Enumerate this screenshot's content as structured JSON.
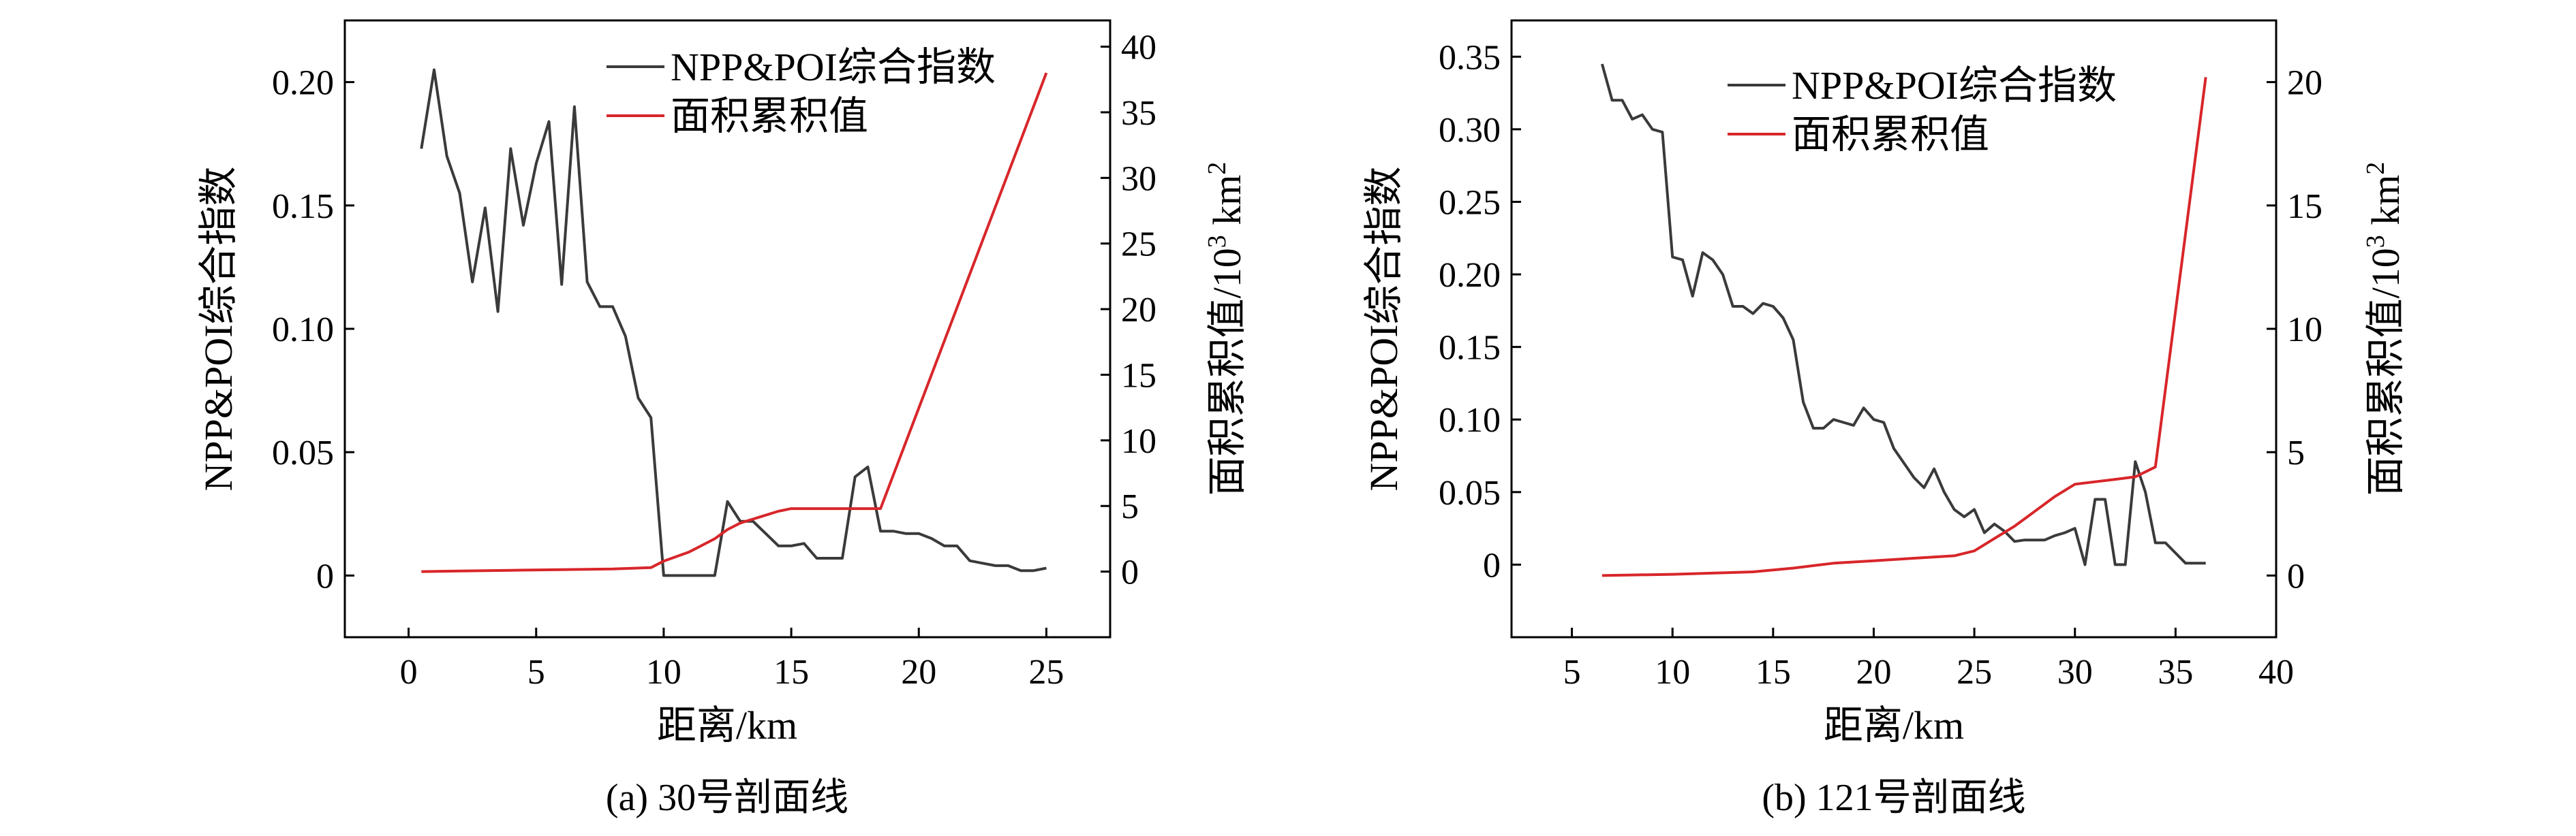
{
  "figure": {
    "captions": [
      "(a) 30号剖面线",
      "(b) 121号剖面线"
    ]
  },
  "colors": {
    "npp": "#3a3a3a",
    "area": "#d8262a",
    "axis": "#000000"
  },
  "chart_data": [
    {
      "type": "line",
      "caption": "(a) 30号剖面线",
      "xlabel": "距离/km",
      "ylabel_left": "NPP&POI综合指数",
      "ylabel_right": "面积累积值/10³ km²",
      "ylabel_right_base": "面积累积值/10",
      "ylabel_right_exp1": "3",
      "ylabel_right_unit": " km",
      "ylabel_right_exp2": "2",
      "xlim": [
        -2.5,
        27.5
      ],
      "ylim_left": [
        -0.025,
        0.225
      ],
      "ylim_right": [
        -5,
        42
      ],
      "x_ticks": [
        0,
        5,
        10,
        15,
        20,
        25
      ],
      "x_tick_labels": [
        "0",
        "5",
        "10",
        "15",
        "20",
        "25"
      ],
      "y_left_ticks": [
        0,
        0.05,
        0.1,
        0.15,
        0.2
      ],
      "y_left_tick_labels": [
        "0",
        "0.05",
        "0.10",
        "0.15",
        "0.20"
      ],
      "y_right_ticks": [
        0,
        5,
        10,
        15,
        20,
        25,
        30,
        35,
        40
      ],
      "y_right_tick_labels": [
        "0",
        "5",
        "10",
        "15",
        "20",
        "25",
        "30",
        "35",
        "40"
      ],
      "legend_position": "top-center",
      "series": [
        {
          "name": "NPP&POI综合指数",
          "axis": "left",
          "x": [
            0.5,
            1.0,
            1.5,
            2.0,
            2.5,
            3.0,
            3.5,
            4.0,
            4.5,
            5.0,
            5.5,
            6.0,
            6.5,
            7.0,
            7.5,
            8.0,
            8.5,
            9.0,
            9.5,
            10.0,
            10.5,
            11.0,
            11.5,
            12.0,
            12.5,
            13.0,
            13.5,
            14.0,
            14.5,
            15.0,
            15.5,
            16.0,
            16.5,
            17.0,
            17.5,
            18.0,
            18.5,
            19.0,
            19.5,
            20.0,
            20.5,
            21.0,
            21.5,
            22.0,
            22.5,
            23.0,
            23.5,
            24.0,
            24.5,
            25.0
          ],
          "values": [
            0.173,
            0.205,
            0.17,
            0.155,
            0.119,
            0.149,
            0.107,
            0.173,
            0.142,
            0.167,
            0.184,
            0.118,
            0.19,
            0.119,
            0.109,
            0.109,
            0.097,
            0.072,
            0.064,
            0.0,
            0.0,
            0.0,
            0.0,
            0.0,
            0.03,
            0.022,
            0.022,
            0.017,
            0.012,
            0.012,
            0.013,
            0.007,
            0.007,
            0.007,
            0.04,
            0.044,
            0.018,
            0.018,
            0.017,
            0.017,
            0.015,
            0.012,
            0.012,
            0.006,
            0.005,
            0.004,
            0.004,
            0.002,
            0.002,
            0.003
          ]
        },
        {
          "name": "面积累积值",
          "axis": "right",
          "x": [
            0.5,
            2.0,
            4.0,
            6.0,
            8.0,
            9.5,
            10.0,
            11.0,
            12.0,
            12.5,
            13.0,
            13.5,
            14.0,
            14.5,
            15.0,
            16.0,
            17.0,
            18.0,
            18.5,
            25.0
          ],
          "values": [
            0.0,
            0.05,
            0.1,
            0.15,
            0.2,
            0.3,
            0.8,
            1.5,
            2.5,
            3.2,
            3.7,
            4.0,
            4.3,
            4.6,
            4.8,
            4.8,
            4.8,
            4.8,
            4.8,
            38.0
          ]
        }
      ]
    },
    {
      "type": "line",
      "caption": "(b) 121号剖面线",
      "xlabel": "距离/km",
      "ylabel_left": "NPP&POI综合指数",
      "ylabel_right": "面积累积值/10³ km²",
      "ylabel_right_base": "面积累积值/10",
      "ylabel_right_exp1": "3",
      "ylabel_right_unit": " km",
      "ylabel_right_exp2": "2",
      "xlim": [
        2,
        40
      ],
      "ylim_left": [
        -0.05,
        0.375
      ],
      "ylim_right": [
        -2.5,
        22.5
      ],
      "x_ticks": [
        5,
        10,
        15,
        20,
        25,
        30,
        35,
        40
      ],
      "x_tick_labels": [
        "5",
        "10",
        "15",
        "20",
        "25",
        "30",
        "35",
        "40"
      ],
      "y_left_ticks": [
        0,
        0.05,
        0.1,
        0.15,
        0.2,
        0.25,
        0.3,
        0.35
      ],
      "y_left_tick_labels": [
        "0",
        "0.05",
        "0.10",
        "0.15",
        "0.20",
        "0.25",
        "0.30",
        "0.35"
      ],
      "y_right_ticks": [
        0,
        5,
        10,
        15,
        20
      ],
      "y_right_tick_labels": [
        "0",
        "5",
        "10",
        "15",
        "20"
      ],
      "legend_position": "top-center",
      "series": [
        {
          "name": "NPP&POI综合指数",
          "axis": "left",
          "x": [
            6.5,
            7.0,
            7.5,
            8.0,
            8.5,
            9.0,
            9.5,
            10.0,
            10.5,
            11.0,
            11.5,
            12.0,
            12.5,
            13.0,
            13.5,
            14.0,
            14.5,
            15.0,
            15.5,
            16.0,
            16.5,
            17.0,
            17.5,
            18.0,
            18.5,
            19.0,
            19.5,
            20.0,
            20.5,
            21.0,
            21.5,
            22.0,
            22.5,
            23.0,
            23.5,
            24.0,
            24.5,
            25.0,
            25.5,
            26.0,
            26.5,
            27.0,
            27.5,
            28.0,
            28.5,
            29.0,
            29.5,
            30.0,
            30.5,
            31.0,
            31.5,
            32.0,
            32.5,
            33.0,
            33.5,
            34.0,
            34.5,
            35.0,
            35.5,
            36.0,
            36.5
          ],
          "values": [
            0.345,
            0.32,
            0.32,
            0.307,
            0.31,
            0.3,
            0.298,
            0.212,
            0.21,
            0.185,
            0.215,
            0.21,
            0.2,
            0.178,
            0.178,
            0.173,
            0.18,
            0.178,
            0.17,
            0.155,
            0.112,
            0.094,
            0.094,
            0.1,
            0.098,
            0.096,
            0.108,
            0.1,
            0.098,
            0.08,
            0.07,
            0.06,
            0.053,
            0.066,
            0.05,
            0.038,
            0.033,
            0.038,
            0.022,
            0.028,
            0.023,
            0.016,
            0.017,
            0.017,
            0.017,
            0.02,
            0.022,
            0.025,
            0.0,
            0.045,
            0.045,
            0.0,
            0.0,
            0.071,
            0.05,
            0.015,
            0.015,
            0.008,
            0.001,
            0.001,
            0.001
          ]
        },
        {
          "name": "面积累积值",
          "axis": "right",
          "x": [
            6.5,
            10.0,
            14.0,
            16.0,
            18.0,
            20.0,
            22.0,
            24.0,
            25.0,
            26.0,
            27.0,
            28.0,
            29.0,
            30.0,
            31.0,
            32.0,
            33.0,
            34.0,
            36.5
          ],
          "values": [
            0.0,
            0.05,
            0.15,
            0.3,
            0.5,
            0.6,
            0.7,
            0.8,
            1.0,
            1.5,
            2.0,
            2.6,
            3.2,
            3.7,
            3.8,
            3.9,
            4.0,
            4.4,
            20.2
          ]
        }
      ]
    }
  ]
}
